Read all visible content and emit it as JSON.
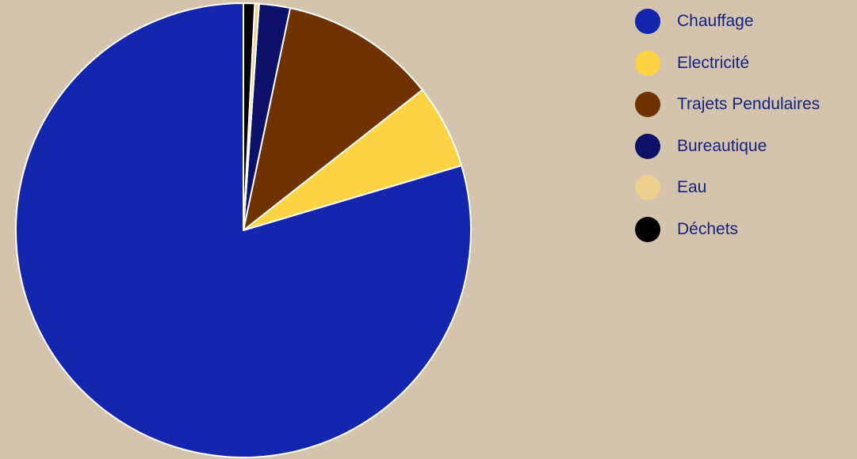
{
  "chart_data": {
    "type": "pie",
    "categories": [
      "Chauffage",
      "Electricité",
      "Trajets Pendulaires",
      "Bureautique",
      "Eau",
      "Déchets"
    ],
    "values": [
      79.6,
      6.0,
      11.1,
      2.2,
      0.3,
      0.8
    ],
    "colors": [
      "#1426ae",
      "#fbd343",
      "#6f3303",
      "#0e1169",
      "#edd08d",
      "#000000"
    ],
    "start": "12 o'clock",
    "direction": "counter-clockwise",
    "legend_position": "top-right",
    "title": ""
  }
}
